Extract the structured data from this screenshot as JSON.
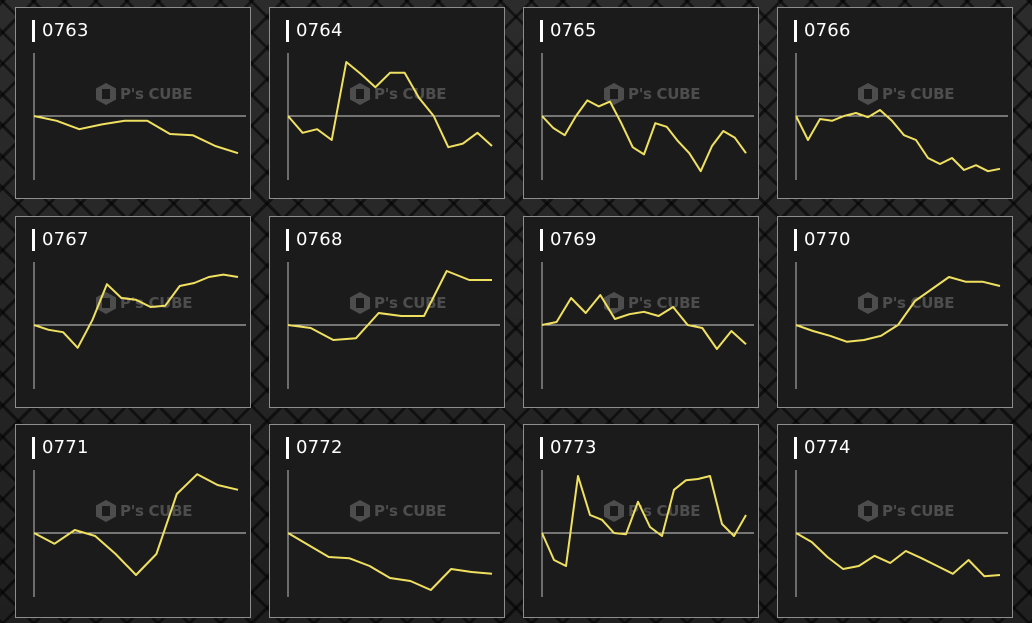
{
  "watermark": "P's CUBE",
  "colors": {
    "line": "#f0e060",
    "axis": "#bdbdbd",
    "baseline": "#cfcfcf"
  },
  "chart_data": [
    {
      "type": "line",
      "title": "0763",
      "baseline": 0,
      "ylim": [
        -100,
        100
      ],
      "values": [
        0,
        -8,
        -22,
        -14,
        -8,
        -8,
        -30,
        -32,
        -50,
        -62
      ]
    },
    {
      "type": "line",
      "title": "0764",
      "baseline": 0,
      "ylim": [
        -100,
        100
      ],
      "values": [
        0,
        -28,
        -22,
        -40,
        90,
        70,
        48,
        72,
        72,
        30,
        0,
        -52,
        -46,
        -28,
        -50
      ]
    },
    {
      "type": "line",
      "title": "0765",
      "baseline": 0,
      "ylim": [
        -100,
        100
      ],
      "values": [
        0,
        -20,
        -32,
        0,
        26,
        16,
        24,
        -12,
        -52,
        -64,
        -12,
        -18,
        -42,
        -62,
        -92,
        -50,
        -25,
        -36,
        -62
      ]
    },
    {
      "type": "line",
      "title": "0766",
      "baseline": 0,
      "ylim": [
        -100,
        100
      ],
      "values": [
        0,
        -40,
        -5,
        -8,
        0,
        5,
        -2,
        10,
        -8,
        -32,
        -40,
        -70,
        -80,
        -70,
        -90,
        -82,
        -92,
        -88
      ]
    },
    {
      "type": "line",
      "title": "0767",
      "baseline": 0,
      "ylim": [
        -100,
        100
      ],
      "values": [
        0,
        -8,
        -12,
        -38,
        8,
        68,
        45,
        42,
        30,
        32,
        65,
        70,
        80,
        84,
        80
      ]
    },
    {
      "type": "line",
      "title": "0768",
      "baseline": 0,
      "ylim": [
        -100,
        100
      ],
      "values": [
        0,
        -5,
        -25,
        -22,
        20,
        15,
        15,
        90,
        75,
        75
      ]
    },
    {
      "type": "line",
      "title": "0769",
      "baseline": 0,
      "ylim": [
        -100,
        100
      ],
      "values": [
        0,
        5,
        45,
        20,
        50,
        10,
        18,
        22,
        15,
        30,
        0,
        -5,
        -40,
        -10,
        -32
      ]
    },
    {
      "type": "line",
      "title": "0770",
      "baseline": 0,
      "ylim": [
        -100,
        100
      ],
      "values": [
        0,
        -10,
        -18,
        -28,
        -25,
        -18,
        0,
        40,
        60,
        80,
        72,
        72,
        65
      ]
    },
    {
      "type": "line",
      "title": "0771",
      "baseline": 0,
      "ylim": [
        -100,
        100
      ],
      "values": [
        0,
        -18,
        5,
        -5,
        -35,
        -70,
        -35,
        65,
        98,
        80,
        72
      ]
    },
    {
      "type": "line",
      "title": "0772",
      "baseline": 0,
      "ylim": [
        -100,
        100
      ],
      "values": [
        0,
        -20,
        -40,
        -42,
        -55,
        -75,
        -80,
        -95,
        -60,
        -65,
        -68
      ]
    },
    {
      "type": "line",
      "title": "0773",
      "baseline": 0,
      "ylim": [
        -100,
        100
      ],
      "values": [
        0,
        -45,
        -55,
        95,
        30,
        22,
        0,
        -2,
        52,
        10,
        -5,
        72,
        88,
        90,
        95,
        15,
        -5,
        30
      ]
    },
    {
      "type": "line",
      "title": "0774",
      "baseline": 0,
      "ylim": [
        -100,
        100
      ],
      "values": [
        0,
        -15,
        -40,
        -60,
        -55,
        -38,
        -50,
        -30,
        -42,
        -55,
        -68,
        -45,
        -72,
        -70
      ]
    }
  ]
}
